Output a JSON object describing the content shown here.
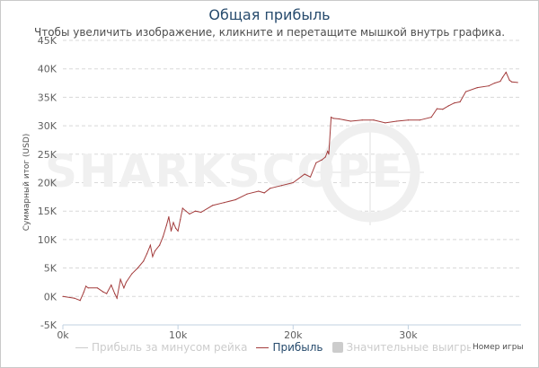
{
  "title": "Общая прибыль",
  "subtitle": "Чтобы увеличить изображение, кликните и перетащите мышкой внутрь графика.",
  "watermark": "SHARKSCOPE",
  "colors": {
    "profit": "#a33c3c",
    "profit_no_rake": "#cccccc",
    "big_wins": "#cccccc",
    "grid": "#d8d8d8",
    "title": "#274b6d"
  },
  "legend": [
    {
      "name": "Прибыль за минусом рейка",
      "color": "#cccccc",
      "kind": "line",
      "active": false
    },
    {
      "name": "Прибыль",
      "color": "#a33c3c",
      "kind": "line",
      "active": true
    },
    {
      "name": "Значительные выигрыши",
      "color": "#cccccc",
      "kind": "box",
      "active": false
    }
  ],
  "chart_data": {
    "type": "line",
    "title": "Общая прибыль",
    "subtitle": "Чтобы увеличить изображение, кликните и перетащите мышкой внутрь графика.",
    "xlabel": "Номер игры",
    "ylabel": "Суммарный итог (USD)",
    "xlim": [
      0,
      39800
    ],
    "ylim": [
      -5000,
      45000
    ],
    "x_ticks": [
      "0k",
      "10k",
      "20k",
      "30k"
    ],
    "y_ticks": [
      "-5K",
      "0K",
      "5K",
      "10K",
      "15K",
      "20K",
      "25K",
      "30K",
      "35K",
      "40K",
      "45K"
    ],
    "grid": "horizontal dashed",
    "legend_position": "bottom",
    "series": [
      {
        "name": "Прибыль",
        "color": "#a33c3c",
        "x": [
          0,
          1000,
          1500,
          1800,
          2000,
          2200,
          3000,
          3500,
          3800,
          4200,
          4500,
          4700,
          5000,
          5300,
          5500,
          6000,
          6500,
          7000,
          7300,
          7600,
          7800,
          8000,
          8400,
          8700,
          9000,
          9200,
          9400,
          9600,
          9800,
          10000,
          10200,
          10400,
          10700,
          11000,
          11500,
          12000,
          13000,
          14000,
          15000,
          16000,
          17000,
          17500,
          18000,
          19000,
          20000,
          21000,
          21500,
          22000,
          22500,
          22800,
          23000,
          23100,
          23300,
          23500,
          24000,
          25000,
          26000,
          27000,
          28000,
          29000,
          30000,
          31000,
          32000,
          32500,
          33000,
          33500,
          34000,
          34500,
          35000,
          36000,
          37000,
          37500,
          38000,
          38200,
          38500,
          38800,
          39000,
          39500
        ],
        "y": [
          0,
          -300,
          -700,
          700,
          1800,
          1500,
          1500,
          800,
          500,
          2000,
          500,
          -300,
          3000,
          1500,
          2500,
          4000,
          5000,
          6200,
          7500,
          9000,
          7000,
          8000,
          9000,
          10500,
          12500,
          14000,
          11500,
          13000,
          12000,
          11500,
          13500,
          15500,
          15000,
          14500,
          15000,
          14800,
          16000,
          16500,
          17000,
          18000,
          18500,
          18200,
          19000,
          19500,
          20000,
          21500,
          21000,
          23500,
          24000,
          24500,
          25500,
          25000,
          31500,
          31300,
          31200,
          30800,
          31000,
          31000,
          30500,
          30800,
          31000,
          31000,
          31500,
          33000,
          32900,
          33500,
          34000,
          34200,
          36000,
          36700,
          37000,
          37500,
          37800,
          38500,
          39400,
          38000,
          37700,
          37600
        ]
      }
    ]
  }
}
